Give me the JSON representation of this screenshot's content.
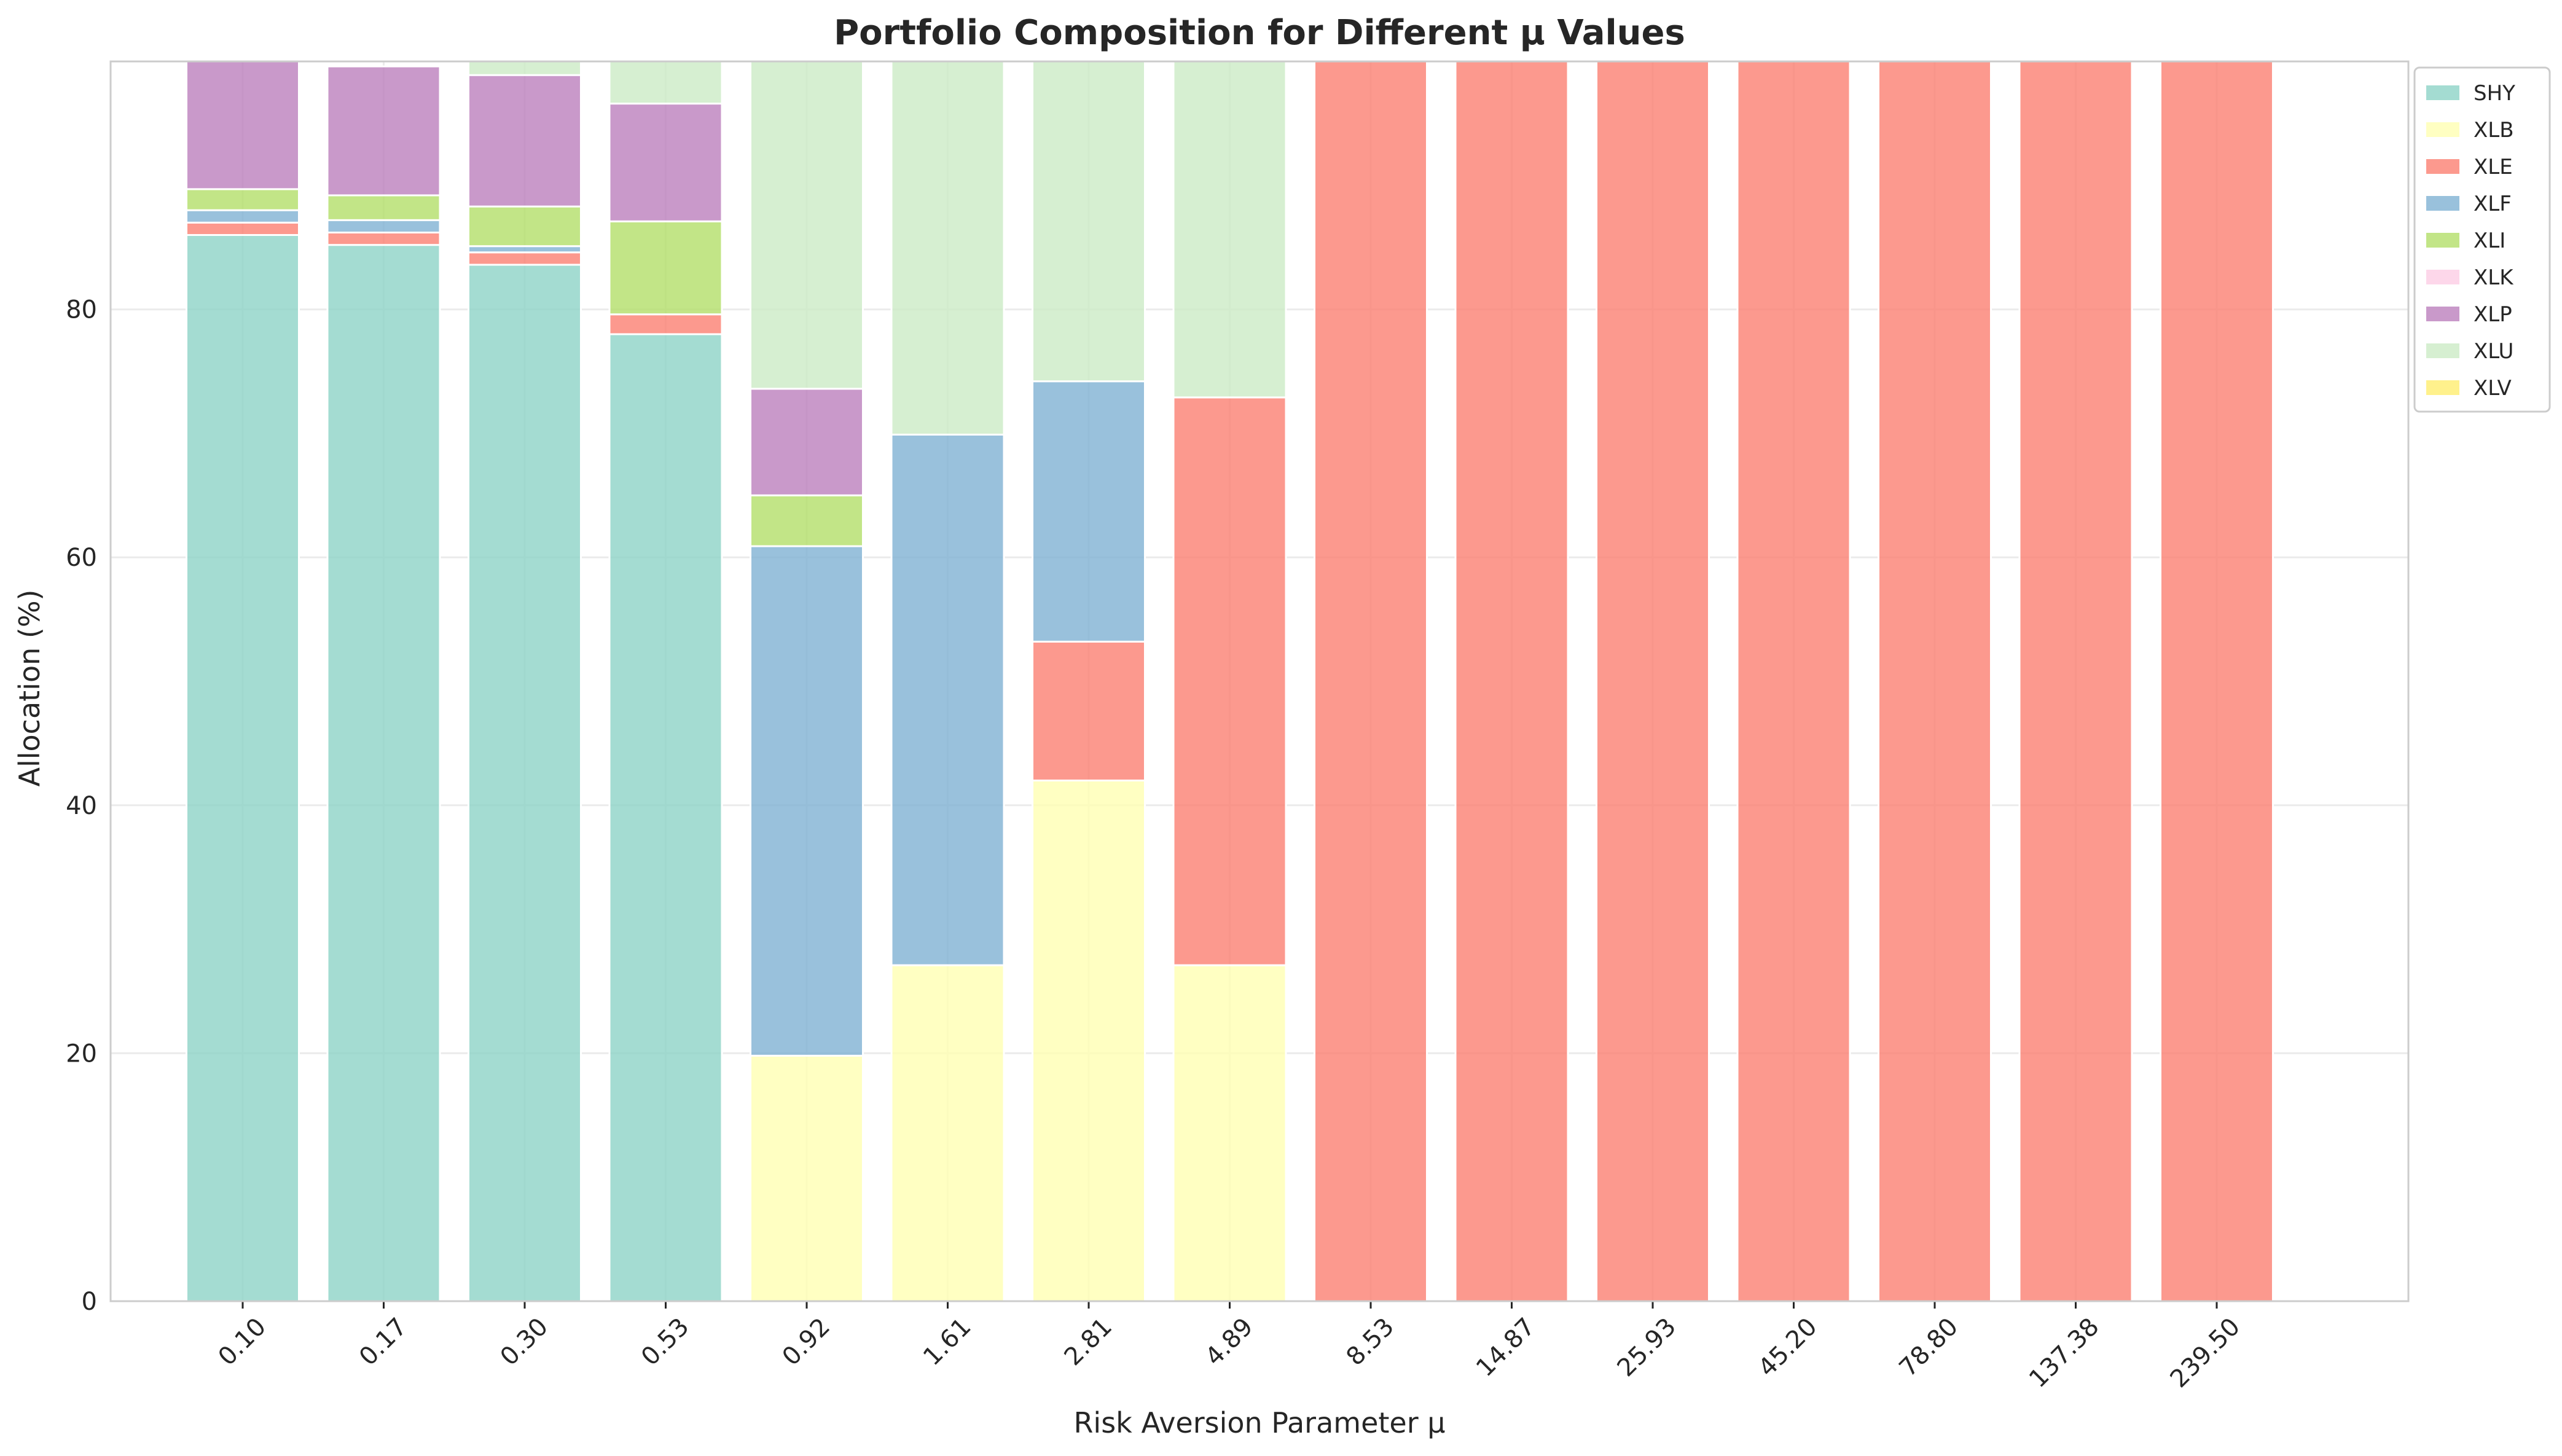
{
  "chart_data": {
    "type": "bar",
    "stacked": true,
    "title": "Portfolio Composition for Different μ Values",
    "xlabel": "Risk Aversion Parameter μ",
    "ylabel": "Allocation (%)",
    "ylim": [
      0,
      100
    ],
    "yticks": [
      0,
      20,
      40,
      60,
      80
    ],
    "grid": true,
    "legend_position": "upper-right-outside",
    "categories": [
      "0.10",
      "0.17",
      "0.30",
      "0.53",
      "0.92",
      "1.61",
      "2.81",
      "4.89",
      "8.53",
      "14.87",
      "25.93",
      "45.20",
      "78.80",
      "137.38",
      "239.50"
    ],
    "series": [
      {
        "name": "SHY",
        "color": "#8dd3c7",
        "values": [
          86,
          85.2,
          83.6,
          78,
          0,
          0,
          0,
          0,
          0,
          0,
          0,
          0,
          0,
          0,
          0
        ]
      },
      {
        "name": "XLB",
        "color": "#ffffb3",
        "values": [
          0,
          0,
          0,
          0,
          19.8,
          27.1,
          42,
          27.1,
          0,
          0,
          0,
          0,
          0,
          0,
          0
        ]
      },
      {
        "name": "XLE",
        "color": "#fb8072",
        "values": [
          1,
          1,
          1,
          1.6,
          0,
          0,
          11.2,
          45.8,
          100,
          100,
          100,
          100,
          100,
          100,
          100
        ]
      },
      {
        "name": "XLF",
        "color": "#80b1d3",
        "values": [
          1,
          1,
          0.5,
          0,
          41.1,
          42.8,
          21,
          0,
          0,
          0,
          0,
          0,
          0,
          0,
          0
        ]
      },
      {
        "name": "XLI",
        "color": "#b3de69",
        "values": [
          1.7,
          2,
          3.2,
          7.5,
          4.1,
          0,
          0,
          0,
          0,
          0,
          0,
          0,
          0,
          0,
          0
        ]
      },
      {
        "name": "XLK",
        "color": "#fccde5",
        "values": [
          0,
          0,
          0,
          0,
          0,
          0,
          0,
          0,
          0,
          0,
          0,
          0,
          0,
          0,
          0
        ]
      },
      {
        "name": "XLP",
        "color": "#bc80bd",
        "values": [
          10.3,
          10.4,
          10.6,
          9.5,
          8.6,
          0,
          0,
          0,
          0,
          0,
          0,
          0,
          0,
          0,
          0
        ]
      },
      {
        "name": "XLU",
        "color": "#ccebc5",
        "values": [
          0,
          0,
          1.1,
          3.4,
          26.4,
          30.1,
          25.8,
          27.1,
          0,
          0,
          0,
          0,
          0,
          0,
          0
        ]
      },
      {
        "name": "XLV",
        "color": "#ffed6f",
        "values": [
          0,
          0,
          0,
          0,
          0,
          0,
          0,
          0,
          0,
          0,
          0,
          0,
          0,
          0,
          0
        ]
      }
    ]
  }
}
